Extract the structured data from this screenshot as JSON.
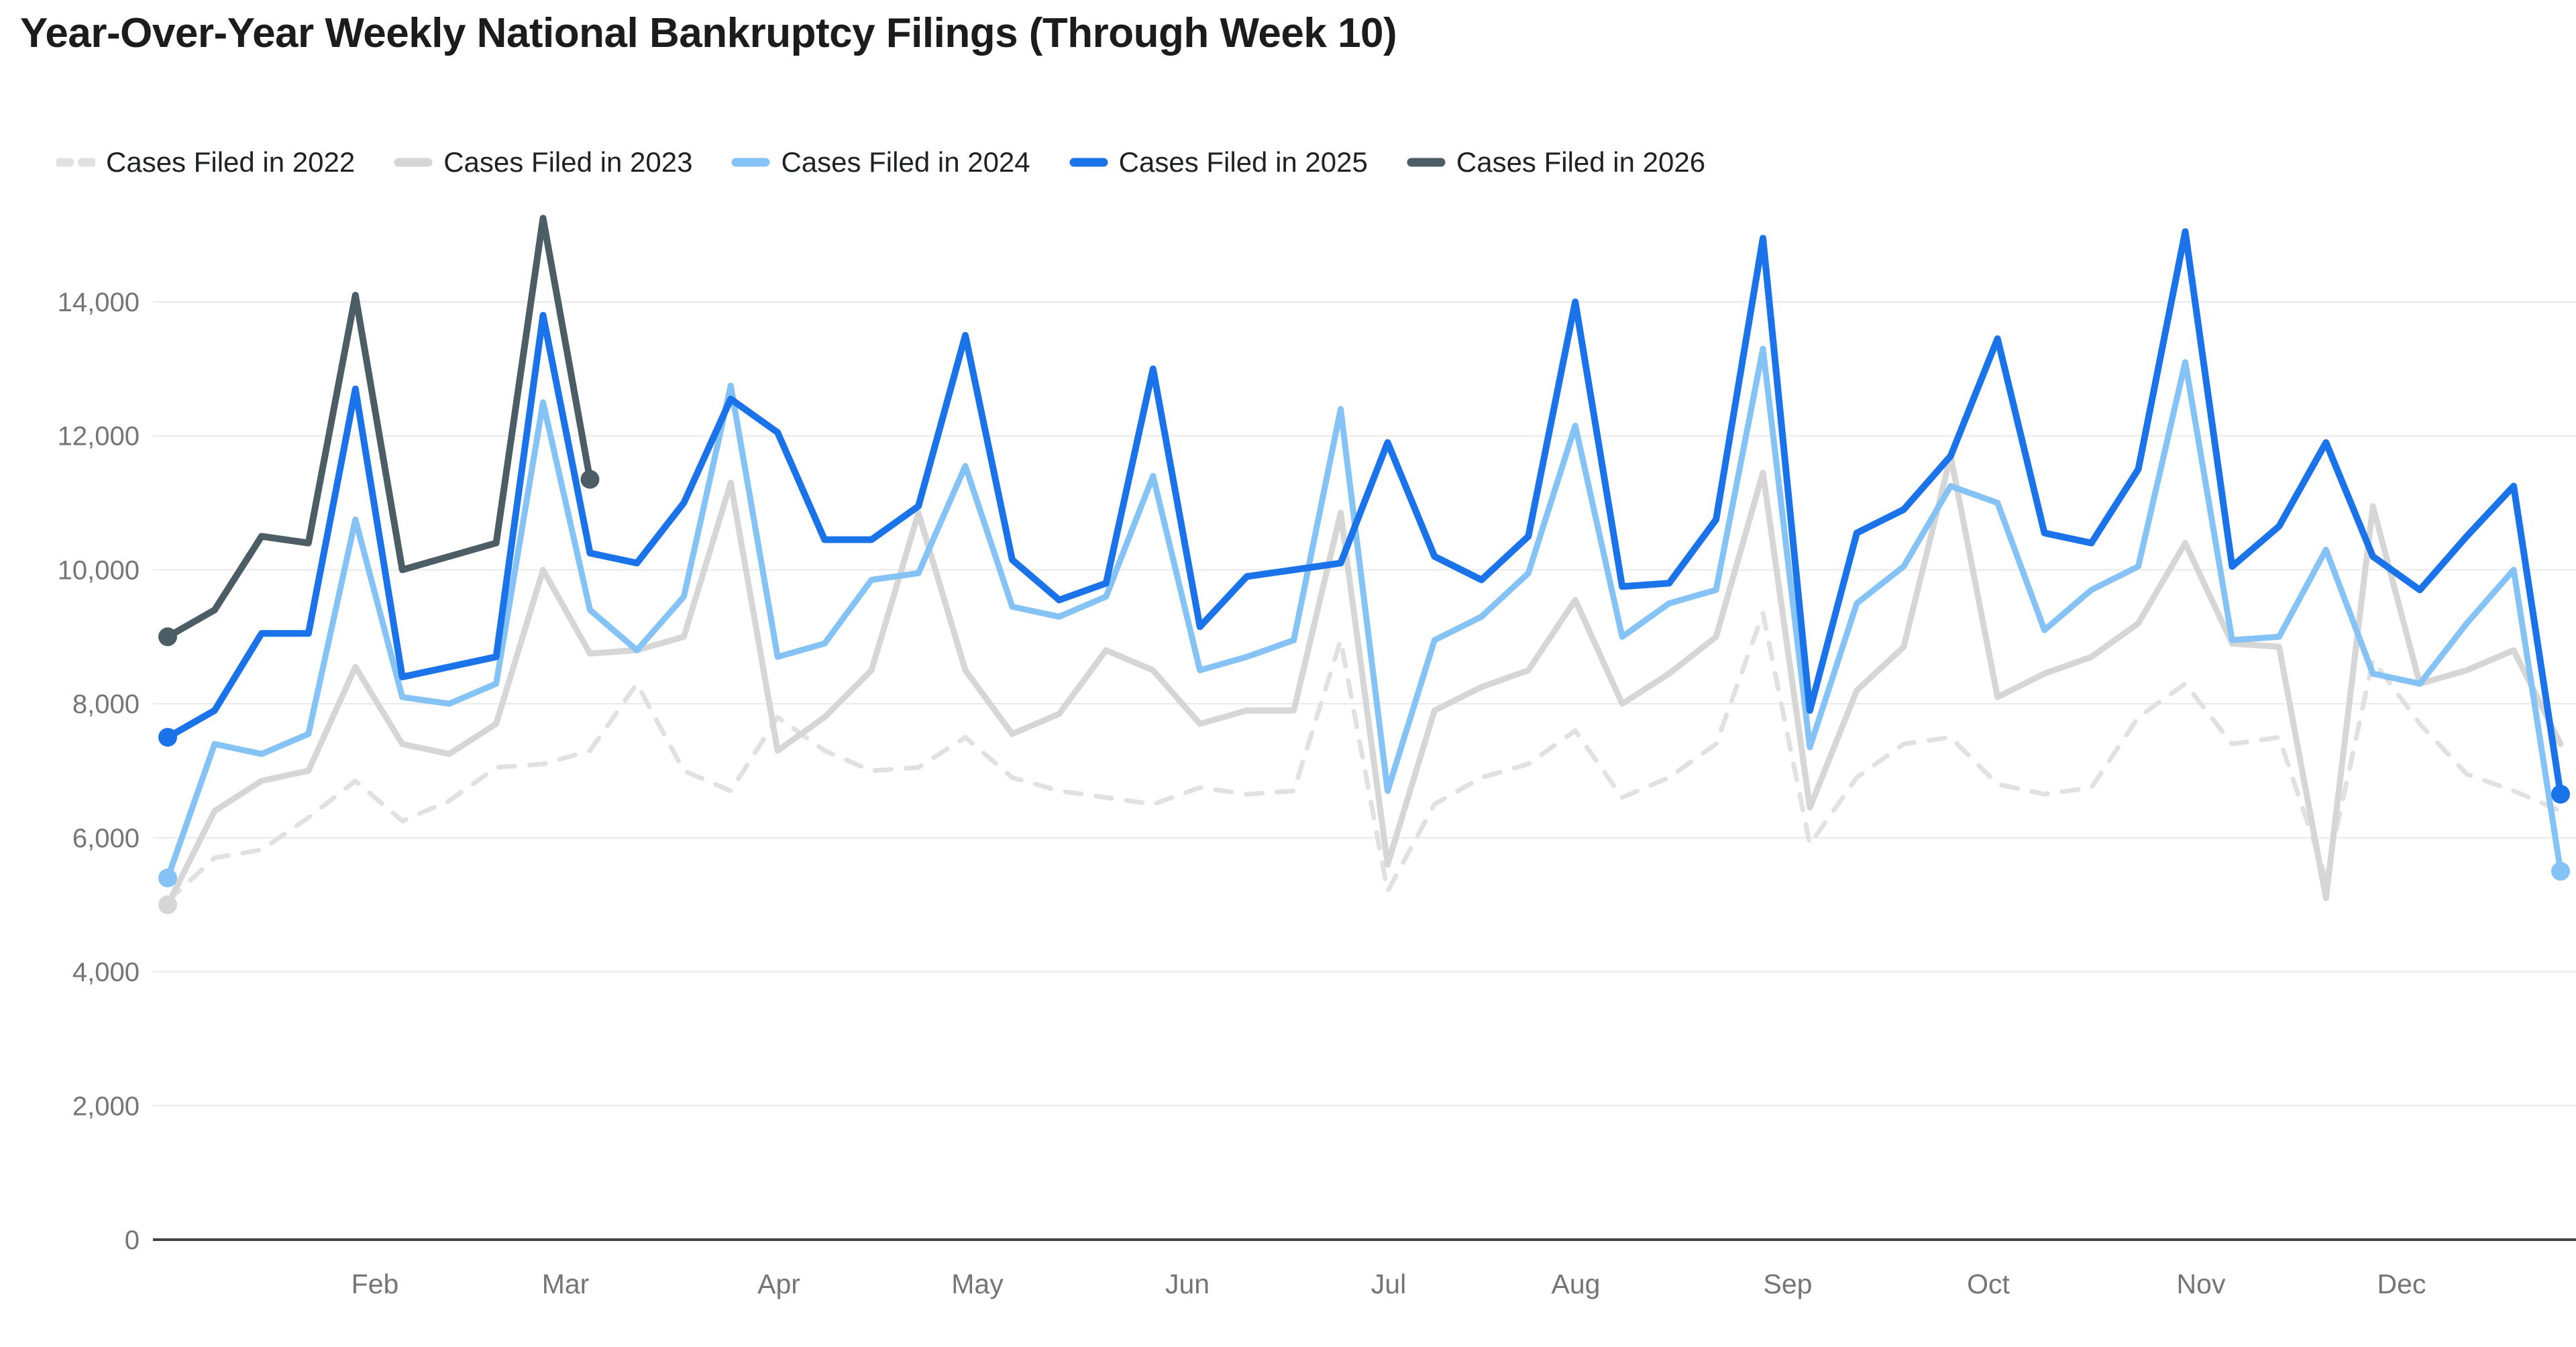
{
  "title": "Year-Over-Year Weekly National Bankruptcy Filings (Through Week 10)",
  "chart_data": {
    "type": "line",
    "title": "Year-Over-Year Weekly National Bankruptcy Filings (Through Week 10)",
    "x_unit": "week of year (1-52)",
    "x_tick_labels": [
      "Feb",
      "Mar",
      "Apr",
      "May",
      "Jun",
      "Jul",
      "Aug",
      "Sep",
      "Oct",
      "Nov",
      "Dec"
    ],
    "y_axis": {
      "min": 0,
      "max_gridline": 14000,
      "tick_interval": 2000,
      "tick_labels": [
        "0",
        "2,000",
        "4,000",
        "6,000",
        "8,000",
        "10,000",
        "12,000",
        "14,000"
      ]
    },
    "grid": true,
    "legend_position": "top",
    "series": [
      {
        "name": "Cases Filed in 2022",
        "color": "#e1e1e1",
        "style": "dashed",
        "markers": {
          "start": false,
          "end": false
        },
        "values": [
          5050,
          5700,
          5820,
          6300,
          6850,
          6250,
          6550,
          7050,
          7100,
          7300,
          8300,
          7000,
          6700,
          7800,
          7300,
          7000,
          7050,
          7500,
          6900,
          6700,
          6600,
          6500,
          6750,
          6650,
          6700,
          8950,
          5200,
          6500,
          6900,
          7100,
          7600,
          6600,
          6900,
          7400,
          9350,
          5900,
          6900,
          7400,
          7500,
          6800,
          6650,
          6750,
          7800,
          8300,
          7400,
          7500,
          5400,
          8650,
          7700,
          6950,
          6700,
          6400
        ]
      },
      {
        "name": "Cases Filed in 2023",
        "color": "#d6d6d6",
        "style": "solid",
        "markers": {
          "start": true,
          "end": false
        },
        "values": [
          5000,
          6400,
          6850,
          7000,
          8550,
          7400,
          7250,
          7700,
          10000,
          8750,
          8800,
          9000,
          11300,
          7300,
          7800,
          8500,
          10850,
          8500,
          7550,
          7850,
          8800,
          8500,
          7700,
          7900,
          7900,
          10850,
          5600,
          7900,
          8250,
          8500,
          9550,
          8000,
          8450,
          9000,
          11450,
          6450,
          8200,
          8850,
          11700,
          8100,
          8450,
          8700,
          9200,
          10400,
          8900,
          8850,
          5100,
          10950,
          8300,
          8500,
          8800,
          7400
        ]
      },
      {
        "name": "Cases Filed in 2024",
        "color": "#85c2f5",
        "style": "solid",
        "markers": {
          "start": true,
          "end": true
        },
        "values": [
          5400,
          7400,
          7250,
          7550,
          10750,
          8100,
          8000,
          8300,
          12500,
          9400,
          8800,
          9600,
          12750,
          8700,
          8900,
          9850,
          9950,
          11550,
          9450,
          9300,
          9600,
          11400,
          8500,
          8700,
          8950,
          12400,
          6700,
          8950,
          9300,
          9950,
          12150,
          9000,
          9500,
          9700,
          13300,
          7350,
          9500,
          10050,
          11250,
          11000,
          9100,
          9700,
          10050,
          13100,
          8950,
          9000,
          10300,
          8450,
          8300,
          9200,
          10000,
          5500
        ]
      },
      {
        "name": "Cases Filed in 2025",
        "color": "#1a73e8",
        "style": "solid",
        "markers": {
          "start": true,
          "end": true
        },
        "values": [
          7500,
          7900,
          9050,
          9050,
          12700,
          8400,
          8550,
          8700,
          13800,
          10250,
          10100,
          11000,
          12550,
          12050,
          10450,
          10450,
          10950,
          13500,
          10150,
          9550,
          9800,
          13000,
          9150,
          9900,
          10000,
          10100,
          11900,
          10200,
          9850,
          10500,
          14000,
          9750,
          9800,
          10750,
          14950,
          7900,
          10550,
          10900,
          11700,
          13450,
          10550,
          10400,
          11500,
          15050,
          10050,
          10650,
          11900,
          10200,
          9700,
          10500,
          11250,
          6650
        ]
      },
      {
        "name": "Cases Filed in 2026",
        "color": "#4d5d66",
        "style": "solid",
        "markers": {
          "start": true,
          "end": true
        },
        "values": [
          9000,
          9400,
          10500,
          10400,
          14100,
          10000,
          10200,
          10400,
          15250,
          11350
        ]
      }
    ]
  }
}
